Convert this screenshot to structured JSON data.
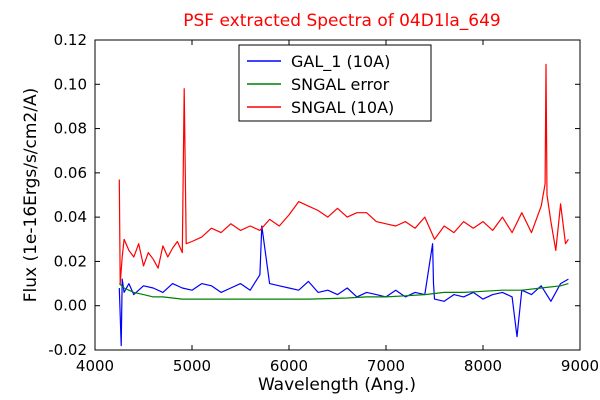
{
  "chart_data": {
    "type": "line",
    "title": "PSF extracted Spectra of 04D1la_649",
    "title_color": "#ff0000",
    "xlabel": "Wavelength (Ang.)",
    "ylabel": "Flux (1e-16Ergs/s/cm2/A)",
    "xlim": [
      4000,
      9000
    ],
    "ylim": [
      -0.02,
      0.12
    ],
    "x_ticks": [
      4000,
      5000,
      6000,
      7000,
      8000,
      9000
    ],
    "x_tick_labels": [
      "4000",
      "5000",
      "6000",
      "7000",
      "8000",
      "9000"
    ],
    "y_ticks": [
      -0.02,
      0.0,
      0.02,
      0.04,
      0.06,
      0.08,
      0.1,
      0.12
    ],
    "y_tick_labels": [
      "-0.02",
      "0.00",
      "0.02",
      "0.04",
      "0.06",
      "0.08",
      "0.10",
      "0.12"
    ],
    "grid": false,
    "legend_position": "top-center",
    "series": [
      {
        "name": "GAL_1 (10A)",
        "color": "#0000ff",
        "x": [
          4250,
          4270,
          4280,
          4300,
          4350,
          4400,
          4500,
          4600,
          4700,
          4800,
          4900,
          5000,
          5100,
          5200,
          5300,
          5400,
          5500,
          5600,
          5700,
          5720,
          5800,
          5900,
          6000,
          6100,
          6200,
          6300,
          6400,
          6500,
          6600,
          6700,
          6800,
          6900,
          7000,
          7100,
          7200,
          7300,
          7400,
          7480,
          7490,
          7500,
          7600,
          7700,
          7800,
          7900,
          8000,
          8100,
          8200,
          8300,
          8350,
          8400,
          8500,
          8600,
          8700,
          8800,
          8880
        ],
        "y": [
          0.008,
          -0.018,
          0.012,
          0.006,
          0.01,
          0.005,
          0.009,
          0.008,
          0.006,
          0.01,
          0.008,
          0.007,
          0.01,
          0.009,
          0.006,
          0.008,
          0.01,
          0.007,
          0.014,
          0.036,
          0.01,
          0.009,
          0.008,
          0.007,
          0.011,
          0.006,
          0.007,
          0.005,
          0.008,
          0.004,
          0.006,
          0.005,
          0.004,
          0.007,
          0.004,
          0.006,
          0.005,
          0.028,
          0.01,
          0.003,
          0.002,
          0.005,
          0.004,
          0.006,
          0.003,
          0.005,
          0.006,
          0.004,
          -0.014,
          0.007,
          0.005,
          0.009,
          0.002,
          0.01,
          0.012
        ]
      },
      {
        "name": "SNGAL error",
        "color": "#008000",
        "x": [
          4250,
          4300,
          4400,
          4500,
          4600,
          4700,
          4800,
          4900,
          5000,
          5200,
          5400,
          5600,
          5800,
          6000,
          6200,
          6400,
          6600,
          6800,
          7000,
          7200,
          7400,
          7600,
          7800,
          8000,
          8200,
          8400,
          8600,
          8800,
          8880
        ],
        "y": [
          0.01,
          0.008,
          0.006,
          0.005,
          0.004,
          0.004,
          0.0035,
          0.003,
          0.003,
          0.003,
          0.003,
          0.003,
          0.003,
          0.003,
          0.003,
          0.0032,
          0.0035,
          0.004,
          0.004,
          0.0045,
          0.005,
          0.006,
          0.006,
          0.0065,
          0.007,
          0.007,
          0.008,
          0.009,
          0.01
        ]
      },
      {
        "name": "SNGAL (10A)",
        "color": "#ff0000",
        "x": [
          4250,
          4260,
          4280,
          4300,
          4350,
          4400,
          4450,
          4500,
          4550,
          4600,
          4650,
          4700,
          4750,
          4800,
          4850,
          4900,
          4920,
          4940,
          5000,
          5100,
          5200,
          5300,
          5400,
          5500,
          5600,
          5700,
          5800,
          5900,
          6000,
          6100,
          6200,
          6300,
          6400,
          6500,
          6600,
          6700,
          6800,
          6900,
          7000,
          7100,
          7200,
          7300,
          7400,
          7500,
          7600,
          7700,
          7800,
          7900,
          8000,
          8100,
          8200,
          8300,
          8400,
          8500,
          8600,
          8640,
          8650,
          8660,
          8700,
          8750,
          8800,
          8850,
          8880
        ],
        "y": [
          0.057,
          0.01,
          0.022,
          0.03,
          0.025,
          0.022,
          0.028,
          0.018,
          0.024,
          0.021,
          0.017,
          0.027,
          0.022,
          0.026,
          0.029,
          0.024,
          0.098,
          0.028,
          0.029,
          0.031,
          0.035,
          0.033,
          0.037,
          0.034,
          0.036,
          0.034,
          0.039,
          0.036,
          0.041,
          0.047,
          0.045,
          0.043,
          0.04,
          0.044,
          0.04,
          0.042,
          0.042,
          0.038,
          0.037,
          0.036,
          0.038,
          0.035,
          0.04,
          0.03,
          0.036,
          0.033,
          0.038,
          0.035,
          0.038,
          0.034,
          0.04,
          0.033,
          0.042,
          0.033,
          0.045,
          0.055,
          0.109,
          0.05,
          0.038,
          0.025,
          0.046,
          0.028,
          0.03
        ]
      }
    ]
  }
}
